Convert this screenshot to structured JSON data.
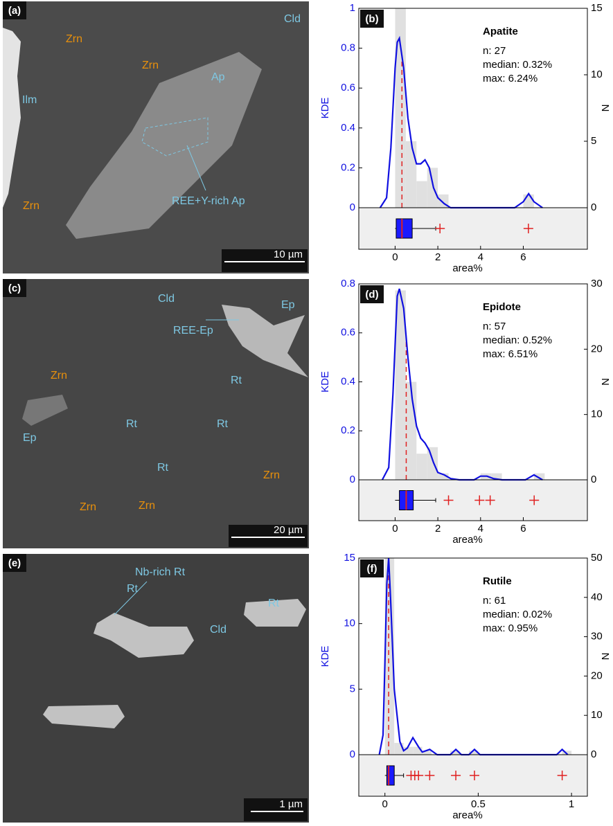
{
  "images": [
    {
      "panel_label": "(a)",
      "scale": "10 µm",
      "labels": [
        "Cld",
        "Zrn",
        "Zrn",
        "Ap",
        "Ilm",
        "REE+Y-rich Ap",
        "Zrn"
      ]
    },
    {
      "panel_label": "(c)",
      "scale": "20 µm",
      "labels": [
        "Cld",
        "Ep",
        "REE-Ep",
        "Zrn",
        "Rt",
        "Ep",
        "Rt",
        "Rt",
        "Rt",
        "Zrn",
        "Zrn",
        "Zrn"
      ]
    },
    {
      "panel_label": "(e)",
      "scale": "1 µm",
      "labels": [
        "Nb-rich Rt",
        "Rt",
        "Rt",
        "Cld"
      ]
    }
  ],
  "chart_data": [
    {
      "type": "histogram-kde",
      "panel_label": "(b)",
      "title": "Apatite",
      "annotations": [
        "n: 27",
        "median: 0.32%",
        "max: 6.24%"
      ],
      "xlabel": "area%",
      "ylabel": "KDE",
      "y2label": "N",
      "xlim": [
        -1.7,
        9
      ],
      "xticks": [
        0,
        2,
        4,
        6
      ],
      "ylim": [
        0,
        1
      ],
      "yticks": [
        0,
        0.2,
        0.4,
        0.6,
        0.8,
        1
      ],
      "y2lim": [
        0,
        15
      ],
      "y2ticks": [
        0,
        5,
        10,
        15
      ],
      "bins": [
        0,
        0.5,
        1,
        1.5,
        2,
        2.5,
        3,
        3.5,
        4,
        4.5,
        5,
        5.5,
        6,
        6.5
      ],
      "counts": [
        15,
        5,
        2,
        3,
        1,
        0,
        0,
        0,
        0,
        0,
        0,
        0,
        1
      ],
      "kde": {
        "x": [
          -0.7,
          -0.4,
          -0.2,
          0,
          0.1,
          0.2,
          0.4,
          0.6,
          0.8,
          1.0,
          1.2,
          1.4,
          1.6,
          1.8,
          2.0,
          2.3,
          2.6,
          3,
          5.6,
          6.0,
          6.25,
          6.5,
          6.9
        ],
        "y": [
          0,
          0.05,
          0.3,
          0.7,
          0.83,
          0.85,
          0.7,
          0.45,
          0.3,
          0.22,
          0.22,
          0.24,
          0.2,
          0.1,
          0.05,
          0.02,
          0,
          0,
          0,
          0.03,
          0.07,
          0.03,
          0
        ]
      },
      "box": {
        "whisker_low": 0,
        "q1": 0.05,
        "median": 0.32,
        "q3": 0.8,
        "whisker_high": 1.9,
        "outliers": [
          2.1,
          6.24
        ]
      }
    },
    {
      "type": "histogram-kde",
      "panel_label": "(d)",
      "title": "Epidote",
      "annotations": [
        "n: 57",
        "median: 0.52%",
        "max: 6.51%"
      ],
      "xlabel": "area%",
      "ylabel": "KDE",
      "y2label": "N",
      "xlim": [
        -1.7,
        9
      ],
      "xticks": [
        0,
        2,
        4,
        6
      ],
      "ylim": [
        0,
        0.8
      ],
      "yticks": [
        0,
        0.2,
        0.4,
        0.6,
        0.8
      ],
      "y2lim": [
        0,
        30
      ],
      "y2ticks": [
        0,
        10,
        20,
        30
      ],
      "bins": [
        0,
        0.5,
        1,
        1.5,
        2,
        2.5,
        3,
        3.5,
        4,
        4.5,
        5,
        5.5,
        6,
        6.5,
        7
      ],
      "counts": [
        29,
        15,
        4,
        5,
        1,
        0,
        0,
        0,
        1,
        1,
        0,
        0,
        0,
        1
      ],
      "kde": {
        "x": [
          -0.6,
          -0.3,
          -0.1,
          0.1,
          0.2,
          0.4,
          0.6,
          0.8,
          1.0,
          1.2,
          1.4,
          1.6,
          1.8,
          2.0,
          2.3,
          2.6,
          3,
          3.7,
          4.0,
          4.3,
          4.6,
          5,
          6.1,
          6.5,
          6.9
        ],
        "y": [
          0,
          0.05,
          0.35,
          0.75,
          0.78,
          0.7,
          0.5,
          0.33,
          0.22,
          0.17,
          0.15,
          0.12,
          0.07,
          0.03,
          0.02,
          0.005,
          0,
          0,
          0.015,
          0.015,
          0.005,
          0,
          0,
          0.02,
          0
        ]
      },
      "box": {
        "whisker_low": 0,
        "q1": 0.2,
        "median": 0.52,
        "q3": 0.85,
        "whisker_high": 1.9,
        "outliers": [
          2.5,
          3.95,
          4.45,
          6.51
        ]
      }
    },
    {
      "type": "histogram-kde",
      "panel_label": "(f)",
      "title": "Rutile",
      "annotations": [
        "n: 61",
        "median: 0.02%",
        "max: 0.95%"
      ],
      "xlabel": "area%",
      "ylabel": "KDE",
      "y2label": "N",
      "xlim": [
        -0.14,
        1.085
      ],
      "xticks": [
        0,
        0.5,
        1
      ],
      "ylim": [
        0,
        15
      ],
      "yticks": [
        0,
        5,
        10,
        15
      ],
      "y2lim": [
        0,
        50
      ],
      "y2ticks": [
        0,
        10,
        20,
        30,
        40,
        50
      ],
      "bins": [
        0,
        0.05,
        0.1,
        0.15,
        0.2,
        0.25,
        0.3,
        0.35,
        0.4,
        0.45,
        0.5,
        0.55,
        0.6,
        0.65,
        0.7,
        0.75,
        0.8,
        0.85,
        0.9,
        0.95,
        1
      ],
      "counts": [
        50,
        3,
        2,
        2,
        1,
        0,
        0,
        1,
        0,
        1,
        0,
        0,
        0,
        0,
        0,
        0,
        0,
        0,
        0,
        1
      ],
      "kde": {
        "x": [
          -0.03,
          -0.01,
          0,
          0.01,
          0.02,
          0.03,
          0.05,
          0.08,
          0.1,
          0.12,
          0.15,
          0.18,
          0.2,
          0.24,
          0.28,
          0.35,
          0.38,
          0.41,
          0.45,
          0.48,
          0.51,
          0.55,
          0.92,
          0.95,
          0.98
        ],
        "y": [
          0,
          1.5,
          7,
          13,
          15,
          12,
          5,
          1,
          0.3,
          0.5,
          1.3,
          0.6,
          0.2,
          0.4,
          0,
          0,
          0.4,
          0,
          0,
          0.4,
          0,
          0,
          0,
          0.4,
          0
        ]
      },
      "box": {
        "whisker_low": 0,
        "q1": 0.01,
        "median": 0.02,
        "q3": 0.05,
        "whisker_high": 0.1,
        "outliers": [
          0.14,
          0.16,
          0.18,
          0.24,
          0.38,
          0.48,
          0.95
        ]
      }
    }
  ]
}
